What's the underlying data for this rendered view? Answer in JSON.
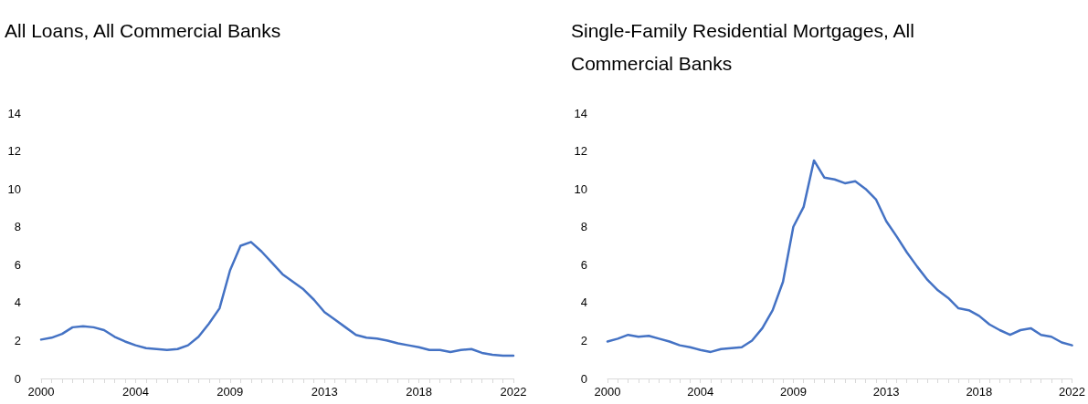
{
  "chart_data": [
    {
      "type": "line",
      "title": "All Loans, All Commercial Banks",
      "categories": [
        "2000",
        null,
        null,
        null,
        null,
        null,
        null,
        null,
        null,
        "2004",
        null,
        null,
        null,
        null,
        null,
        null,
        null,
        null,
        "2009",
        null,
        null,
        null,
        null,
        null,
        null,
        null,
        null,
        "2013",
        null,
        null,
        null,
        null,
        null,
        null,
        null,
        null,
        "2018",
        null,
        null,
        null,
        null,
        null,
        null,
        null,
        null,
        "2022"
      ],
      "series": [
        {
          "color": "#4472c4",
          "values": [
            2.05,
            2.15,
            2.35,
            2.7,
            2.75,
            2.7,
            2.55,
            2.2,
            1.95,
            1.75,
            1.6,
            1.55,
            1.5,
            1.55,
            1.75,
            2.2,
            2.9,
            3.7,
            5.7,
            7.0,
            7.2,
            6.7,
            6.1,
            5.5,
            5.1,
            4.7,
            4.15,
            3.5,
            3.1,
            2.7,
            2.3,
            2.15,
            2.1,
            2.0,
            1.85,
            1.75,
            1.65,
            1.5,
            1.5,
            1.4,
            1.5,
            1.55,
            1.35,
            1.25,
            1.2,
            1.2
          ]
        }
      ],
      "ylim": [
        0,
        14
      ],
      "yticks": [
        0,
        2,
        4,
        6,
        8,
        10,
        12,
        14
      ],
      "grid": false,
      "marker": "none",
      "line_style": "solid"
    },
    {
      "type": "line",
      "title": "Single-Family Residential Mortgages, All Commercial Banks",
      "categories": [
        "2000",
        null,
        null,
        null,
        null,
        null,
        null,
        null,
        null,
        "2004",
        null,
        null,
        null,
        null,
        null,
        null,
        null,
        null,
        "2009",
        null,
        null,
        null,
        null,
        null,
        null,
        null,
        null,
        "2013",
        null,
        null,
        null,
        null,
        null,
        null,
        null,
        null,
        "2018",
        null,
        null,
        null,
        null,
        null,
        null,
        null,
        null,
        "2022"
      ],
      "series": [
        {
          "color": "#4472c4",
          "values": [
            1.95,
            2.1,
            2.3,
            2.2,
            2.25,
            2.1,
            1.95,
            1.75,
            1.65,
            1.5,
            1.4,
            1.55,
            1.6,
            1.65,
            2.0,
            2.65,
            3.6,
            5.1,
            8.0,
            9.05,
            11.5,
            10.6,
            10.5,
            10.3,
            10.4,
            10.0,
            9.45,
            8.3,
            7.5,
            6.65,
            5.9,
            5.2,
            4.65,
            4.25,
            3.7,
            3.6,
            3.3,
            2.85,
            2.55,
            2.3,
            2.55,
            2.65,
            2.3,
            2.2,
            1.9,
            1.75
          ]
        }
      ],
      "ylim": [
        0,
        14
      ],
      "yticks": [
        0,
        2,
        4,
        6,
        8,
        10,
        12,
        14
      ],
      "grid": false,
      "marker": "none",
      "line_style": "solid"
    }
  ]
}
